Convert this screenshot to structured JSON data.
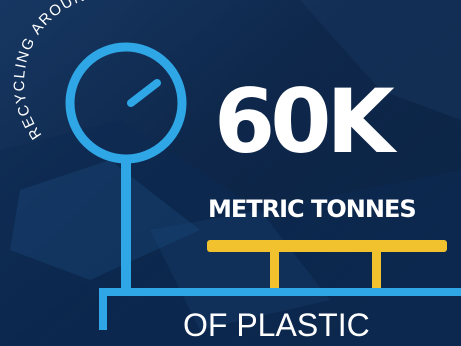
{
  "arc_caption": "RECYCLING AROUND",
  "headline_value": "60K",
  "unit": "METRIC TONNES",
  "material": "OF PLASTIC",
  "colors": {
    "background": "#0b2446",
    "scale_blue": "#2fa7e6",
    "platform_yellow": "#f2c12e",
    "text": "#ffffff"
  },
  "icons": [
    "weighing-scale-icon"
  ]
}
